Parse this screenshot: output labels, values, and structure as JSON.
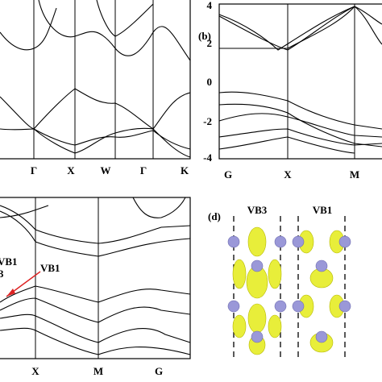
{
  "panel_a": {
    "kpoints": [
      "Γ",
      "X",
      "W",
      "Γ",
      "K"
    ]
  },
  "panel_b": {
    "label": "(b)",
    "yticks": [
      "4",
      "2",
      "0",
      "-2",
      "-4"
    ],
    "kpoints": [
      "G",
      "X",
      "M"
    ]
  },
  "panel_c": {
    "kpoints": [
      "X",
      "M",
      "G"
    ],
    "annotations": [
      "VB1",
      "VB1",
      "3"
    ]
  },
  "panel_d": {
    "label": "(d)",
    "titles": [
      "VB3",
      "VB1"
    ]
  }
}
